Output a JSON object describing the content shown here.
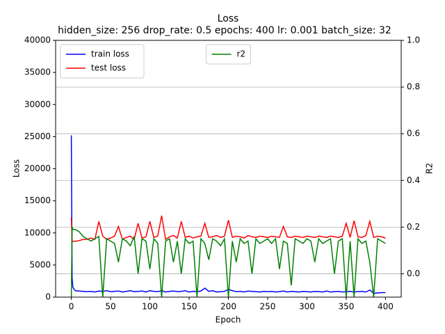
{
  "chart_data": {
    "type": "line",
    "title": "Loss",
    "subtitle": "hidden_size: 256 drop_rate: 0.5 epochs: 400 lr: 0.001 batch_size: 32",
    "xlabel": "Epoch",
    "ylabel": "Loss",
    "y2label": "R2",
    "xlim": [
      -20,
      420
    ],
    "xticks": [
      0,
      50,
      100,
      150,
      200,
      250,
      300,
      350,
      400
    ],
    "ylim": [
      0,
      40000
    ],
    "yticks": [
      0,
      5000,
      10000,
      15000,
      20000,
      25000,
      30000,
      35000,
      40000
    ],
    "y2lim": [
      -0.1,
      1.0
    ],
    "y2ticks": [
      {
        "value": 0,
        "label": "0.0"
      },
      {
        "value": 0.2,
        "label": "0.2"
      },
      {
        "value": 0.4,
        "label": "0.4"
      },
      {
        "value": 0.6,
        "label": "0.6"
      },
      {
        "value": 0.8,
        "label": "0.8"
      },
      {
        "value": 1,
        "label": "1.0"
      }
    ],
    "grid": "y2",
    "legend": "upper left",
    "legend2": "upper center",
    "x": [
      0,
      1,
      2,
      5,
      10,
      15,
      20,
      25,
      30,
      35,
      40,
      45,
      50,
      55,
      60,
      65,
      70,
      75,
      80,
      85,
      90,
      95,
      100,
      105,
      110,
      115,
      120,
      125,
      130,
      135,
      140,
      145,
      150,
      155,
      160,
      165,
      170,
      175,
      180,
      185,
      190,
      195,
      200,
      205,
      210,
      215,
      220,
      225,
      230,
      235,
      240,
      245,
      250,
      255,
      260,
      265,
      270,
      275,
      280,
      285,
      290,
      295,
      300,
      305,
      310,
      315,
      320,
      325,
      330,
      335,
      340,
      345,
      350,
      355,
      360,
      365,
      370,
      375,
      380,
      385,
      390,
      395,
      400
    ],
    "series": [
      {
        "name": "train loss",
        "color": "#0000ff",
        "values": [
          25200,
          3000,
          1500,
          1000,
          950,
          900,
          850,
          900,
          800,
          950,
          900,
          1000,
          850,
          900,
          950,
          800,
          900,
          1000,
          850,
          900,
          950,
          800,
          1000,
          900,
          850,
          1000,
          800,
          900,
          950,
          850,
          900,
          1000,
          800,
          900,
          850,
          950,
          1400,
          900,
          1000,
          800,
          850,
          900,
          1200,
          1000,
          850,
          900,
          800,
          950,
          900,
          850,
          800,
          900,
          850,
          900,
          800,
          850,
          950,
          800,
          900,
          850,
          800,
          900,
          850,
          800,
          900,
          850,
          800,
          950,
          800,
          850,
          900,
          800,
          850,
          900,
          800,
          850,
          900,
          800,
          1100,
          600,
          650,
          700,
          700
        ]
      },
      {
        "name": "test loss",
        "color": "#ff0000",
        "values": [
          12400,
          8700,
          8700,
          8700,
          8800,
          9000,
          9000,
          9200,
          9000,
          11800,
          9500,
          9000,
          9200,
          9500,
          11000,
          9000,
          9300,
          9500,
          9000,
          11500,
          9200,
          9400,
          11800,
          9300,
          9500,
          12700,
          9000,
          9400,
          9600,
          9200,
          11800,
          9300,
          9500,
          9200,
          9400,
          9500,
          11500,
          9300,
          9400,
          9600,
          9300,
          9500,
          12000,
          9300,
          9500,
          9400,
          9200,
          9600,
          9400,
          9300,
          9500,
          9400,
          9300,
          9500,
          9400,
          9300,
          11000,
          9400,
          9300,
          9500,
          9400,
          9300,
          9500,
          9400,
          9300,
          9500,
          9400,
          9300,
          9500,
          9400,
          9300,
          9500,
          11500,
          9300,
          11900,
          9400,
          9300,
          9600,
          11800,
          9300,
          9500,
          9400,
          9200
        ]
      },
      {
        "name": "r2",
        "color": "#008000",
        "axis": "y2",
        "values": [
          -0.1,
          0.2,
          0.19,
          0.19,
          0.18,
          0.16,
          0.15,
          0.14,
          0.15,
          0.16,
          -0.1,
          0.15,
          0.14,
          0.13,
          0.05,
          0.15,
          0.14,
          0.12,
          0.16,
          0.0,
          0.15,
          0.14,
          0.02,
          0.15,
          0.13,
          -0.1,
          0.14,
          0.15,
          0.05,
          0.14,
          0.0,
          0.15,
          0.13,
          0.14,
          -0.1,
          0.15,
          0.13,
          0.06,
          0.15,
          0.14,
          0.12,
          0.15,
          -0.1,
          0.14,
          0.05,
          0.15,
          0.13,
          0.14,
          0.0,
          0.15,
          0.13,
          0.14,
          0.15,
          0.13,
          0.15,
          0.02,
          0.14,
          0.13,
          -0.05,
          0.15,
          0.14,
          0.13,
          0.15,
          0.14,
          0.05,
          0.15,
          0.13,
          0.14,
          0.15,
          0.0,
          0.14,
          0.15,
          -0.1,
          0.14,
          -0.1,
          0.15,
          0.13,
          0.14,
          0.05,
          -0.1,
          0.15,
          0.14,
          0.13
        ]
      }
    ]
  }
}
